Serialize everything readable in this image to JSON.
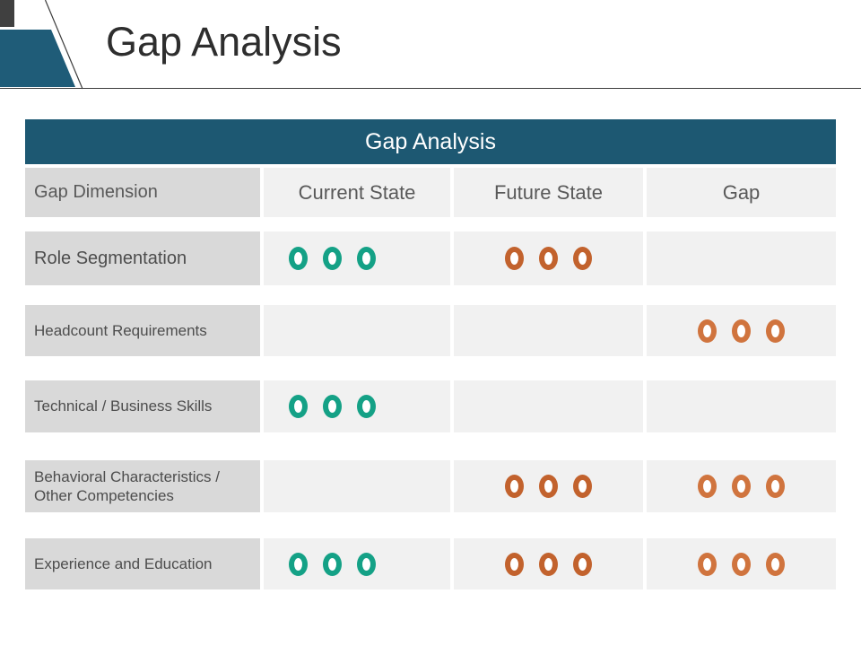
{
  "slide_title": "Gap Analysis",
  "table": {
    "title": "Gap Analysis",
    "columns": [
      "Gap Dimension",
      "Current State",
      "Future State",
      "Gap"
    ],
    "dots_per_cell": 3,
    "rows": [
      {
        "label": "Role Segmentation",
        "current": "teal",
        "future": "orange",
        "gap": "none"
      },
      {
        "label": "Headcount Requirements",
        "current": "none",
        "future": "none",
        "gap": "orange_light"
      },
      {
        "label": "Technical / Business Skills",
        "current": "teal",
        "future": "none",
        "gap": "none"
      },
      {
        "label": "Behavioral Characteristics / Other Competencies",
        "current": "none",
        "future": "orange",
        "gap": "orange_light"
      },
      {
        "label": "Experience and Education",
        "current": "teal",
        "future": "orange",
        "gap": "orange_light"
      }
    ]
  },
  "colors": {
    "header_bar": "#1D5872",
    "accent_shape": "#1F5C78",
    "corner_square": "#404040",
    "teal_ring": "#14A186",
    "orange_ring": "#C2622D",
    "orange_light_ring": "#D0743E",
    "label_cell_bg": "#D9D9D9",
    "value_cell_bg": "#F1F1F1"
  }
}
